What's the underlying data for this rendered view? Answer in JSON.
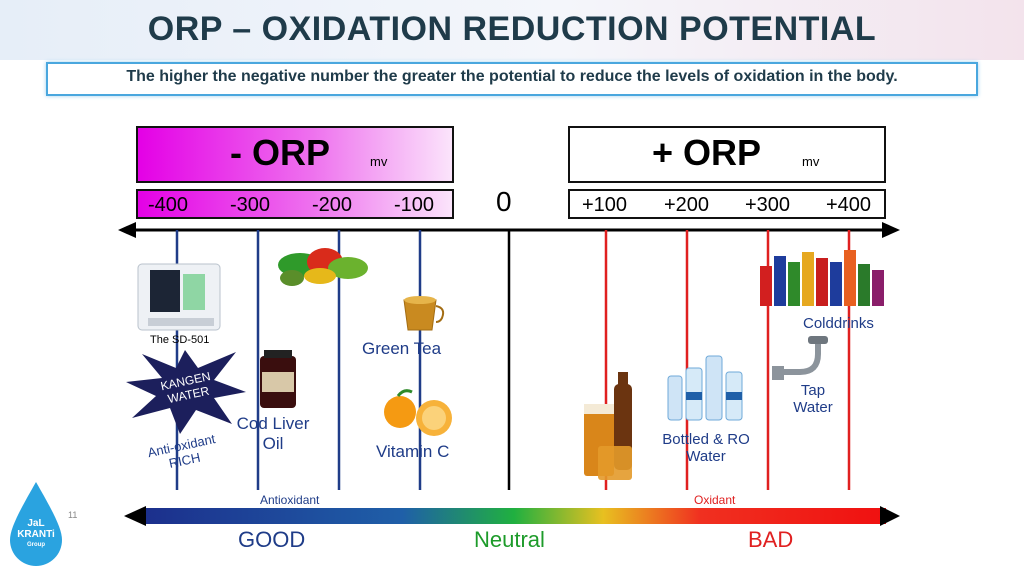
{
  "title": "ORP – OXIDATION REDUCTION POTENTIAL",
  "subtitle": "The higher the negative number the greater the potential to reduce the levels of oxidation in the body.",
  "neg_header": {
    "label": "- ORP",
    "unit": "mv"
  },
  "pos_header": {
    "label": "+ ORP",
    "unit": "mv"
  },
  "neg_ticks": [
    "-400",
    "-300",
    "-200",
    "-100"
  ],
  "zero": "0",
  "pos_ticks": [
    "+100",
    "+200",
    "+300",
    "+400"
  ],
  "items": {
    "sd501": "The SD-501",
    "kangen": "KANGEN WATER",
    "antiox_rich": "Anti-oxidant RICH",
    "cod_liver": "Cod Liver Oil",
    "green_tea": "Green Tea",
    "vitamin_c": "Vitamin C",
    "bottled": "Bottled & RO Water",
    "tap": "Tap Water",
    "colddrinks": "Colddrinks"
  },
  "bottom": {
    "antioxidant": "Antioxidant",
    "oxidant": "Oxidant",
    "good": "GOOD",
    "neutral": "Neutral",
    "bad": "BAD"
  },
  "logo": {
    "line1": "JaL",
    "line2": "KRANTi",
    "line3": "Group"
  },
  "page_number": "11",
  "colors": {
    "negative_gradient_start": "#e400e6",
    "negative_lines": "#1f3c88",
    "neutral_line": "#000000",
    "positive_lines": "#e02020",
    "gradient_blue": "#1f3c88",
    "gradient_green": "#1d9b2a",
    "gradient_red": "#e02020"
  }
}
